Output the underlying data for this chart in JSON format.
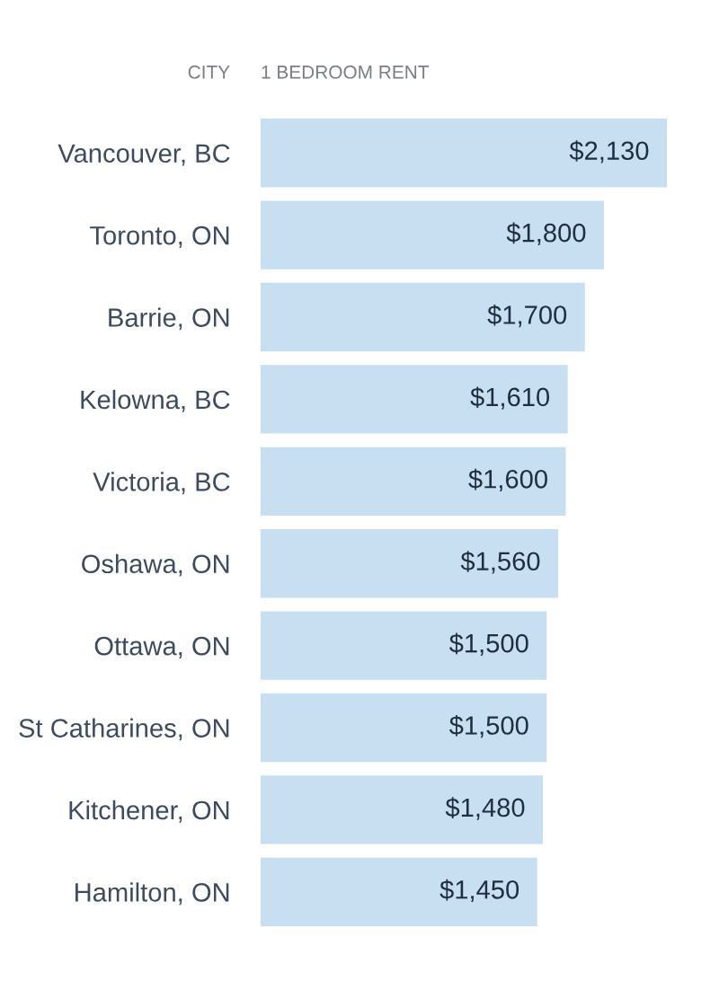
{
  "chart_data": {
    "type": "bar",
    "orientation": "horizontal",
    "xlabel": "1 BEDROOM RENT",
    "ylabel": "CITY",
    "color": "#c7dff0",
    "tick_labels": "y",
    "categories": [
      "Vancouver, BC",
      "Toronto, ON",
      "Barrie, ON",
      "Kelowna, BC",
      "Victoria, BC",
      "Oshawa, ON",
      "Ottawa, ON",
      "St Catharines, ON",
      "Kitchener, ON",
      "Hamilton, ON"
    ],
    "values": [
      2130,
      1800,
      1700,
      1610,
      1600,
      1560,
      1500,
      1500,
      1480,
      1450
    ],
    "value_labels": [
      "$2,130",
      "$1,800",
      "$1,700",
      "$1,610",
      "$1,600",
      "$1,560",
      "$1,500",
      "$1,500",
      "$1,480",
      "$1,450"
    ]
  }
}
